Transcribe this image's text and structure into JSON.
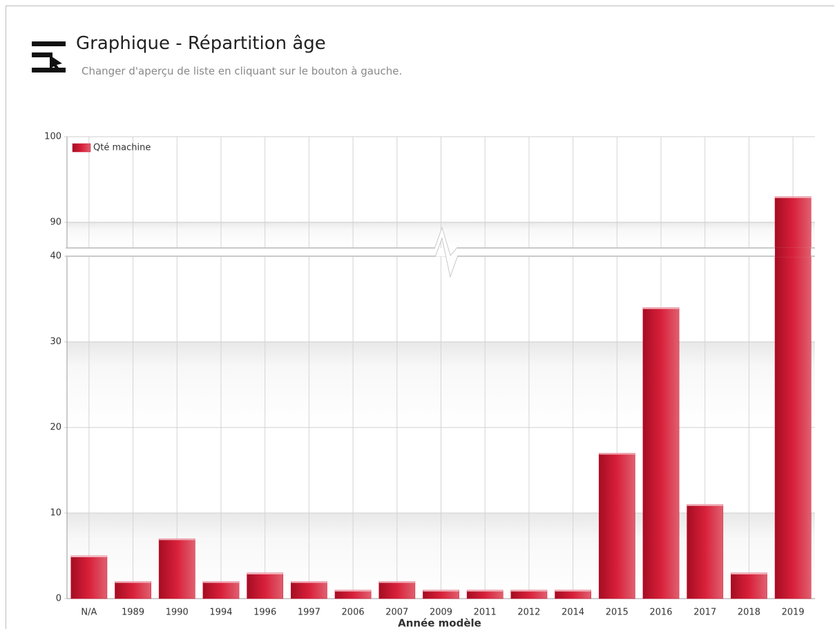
{
  "header": {
    "title": "Graphique - Répartition âge",
    "subtitle": "Changer d'aperçu de liste en cliquant sur le bouton à gauche."
  },
  "chart_data": {
    "type": "bar",
    "categories": [
      "N/A",
      "1989",
      "1990",
      "1994",
      "1996",
      "1997",
      "2006",
      "2007",
      "2009",
      "2011",
      "2012",
      "2014",
      "2015",
      "2016",
      "2017",
      "2018",
      "2019"
    ],
    "series": [
      {
        "name": "Qté machine",
        "color": "#c8102e",
        "values": [
          5,
          2,
          7,
          2,
          3,
          2,
          1,
          2,
          1,
          1,
          1,
          1,
          17,
          34,
          11,
          3,
          93
        ]
      }
    ],
    "x_label": "Année modèle",
    "ylim": [
      0,
      100
    ],
    "axis_break": [
      40,
      87
    ],
    "yticks": [
      0,
      10,
      20,
      30,
      40,
      90,
      100
    ],
    "grid": true,
    "legend": "top-left"
  }
}
